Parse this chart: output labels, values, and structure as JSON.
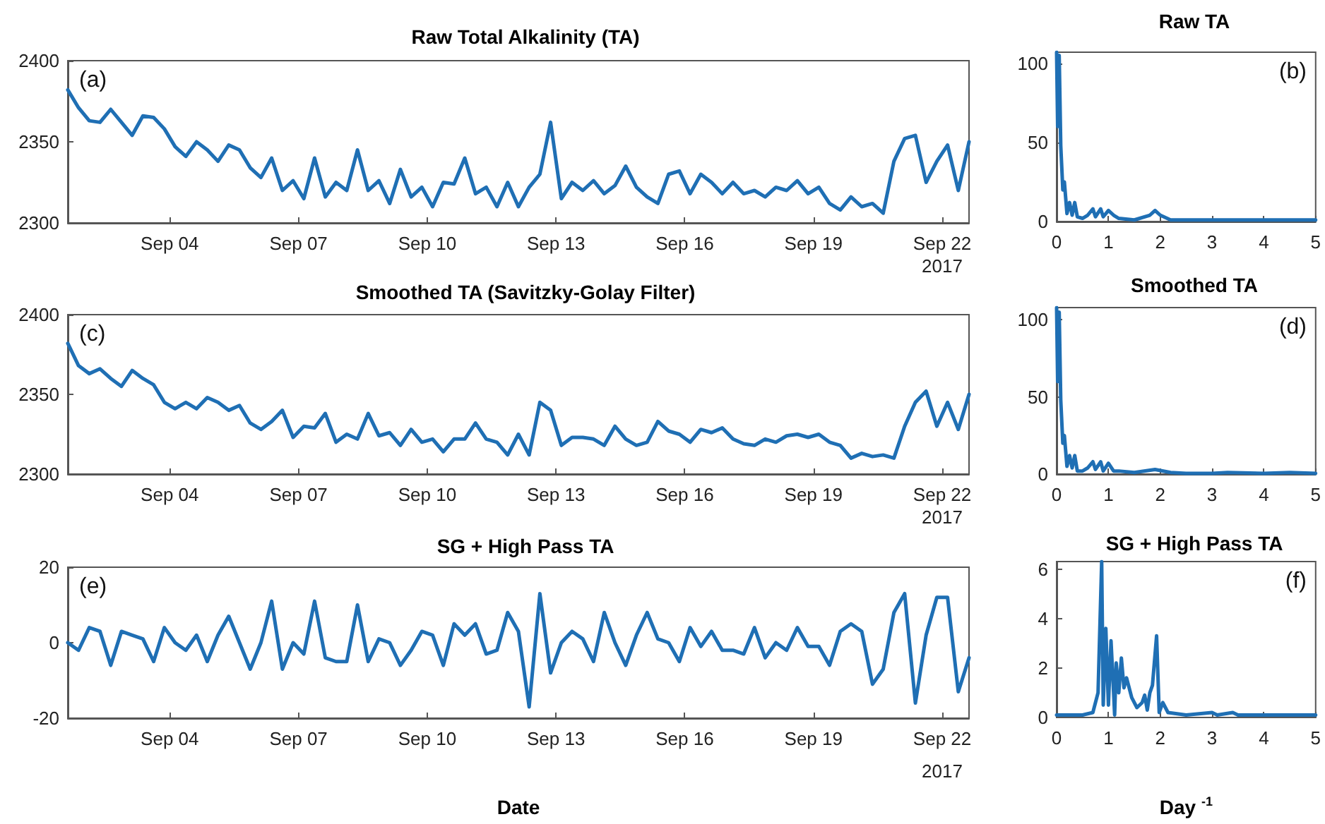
{
  "chart_data": [
    {
      "type": "line",
      "title": "Raw Total Alkalinity (TA)",
      "annotations": [
        "(a)",
        "2017"
      ],
      "x": [
        "2017-09-01T15:00",
        "2017-09-01T21:00",
        "2017-09-02T03:00",
        "2017-09-02T09:00",
        "2017-09-02T15:00",
        "2017-09-02T21:00",
        "2017-09-03T03:00",
        "2017-09-03T09:00",
        "2017-09-03T15:00",
        "2017-09-03T21:00",
        "2017-09-04T03:00",
        "2017-09-04T09:00",
        "2017-09-04T15:00",
        "2017-09-04T21:00",
        "2017-09-05T03:00",
        "2017-09-05T09:00",
        "2017-09-05T15:00",
        "2017-09-05T21:00",
        "2017-09-06T03:00",
        "2017-09-06T09:00",
        "2017-09-06T15:00",
        "2017-09-06T21:00",
        "2017-09-07T03:00",
        "2017-09-07T09:00",
        "2017-09-07T15:00",
        "2017-09-07T21:00",
        "2017-09-08T03:00",
        "2017-09-08T09:00",
        "2017-09-08T15:00",
        "2017-09-08T21:00",
        "2017-09-09T03:00",
        "2017-09-09T09:00",
        "2017-09-09T15:00",
        "2017-09-09T21:00",
        "2017-09-10T03:00",
        "2017-09-10T09:00",
        "2017-09-10T15:00",
        "2017-09-10T21:00",
        "2017-09-11T03:00",
        "2017-09-11T09:00",
        "2017-09-11T15:00",
        "2017-09-11T21:00",
        "2017-09-12T03:00",
        "2017-09-12T09:00",
        "2017-09-12T15:00",
        "2017-09-12T21:00",
        "2017-09-13T03:00",
        "2017-09-13T09:00",
        "2017-09-13T15:00",
        "2017-09-13T21:00",
        "2017-09-14T03:00",
        "2017-09-14T09:00",
        "2017-09-14T15:00",
        "2017-09-14T21:00",
        "2017-09-15T03:00",
        "2017-09-15T09:00",
        "2017-09-15T15:00",
        "2017-09-15T21:00",
        "2017-09-16T03:00",
        "2017-09-16T09:00",
        "2017-09-16T15:00",
        "2017-09-16T21:00",
        "2017-09-17T03:00",
        "2017-09-17T09:00",
        "2017-09-17T15:00",
        "2017-09-17T21:00",
        "2017-09-18T03:00",
        "2017-09-18T09:00",
        "2017-09-18T15:00",
        "2017-09-18T21:00",
        "2017-09-19T03:00",
        "2017-09-19T09:00",
        "2017-09-19T15:00",
        "2017-09-19T21:00",
        "2017-09-20T03:00",
        "2017-09-20T09:00",
        "2017-09-20T15:00",
        "2017-09-20T21:00",
        "2017-09-21T03:00",
        "2017-09-21T09:00",
        "2017-09-21T15:00",
        "2017-09-21T21:00",
        "2017-09-22T03:00",
        "2017-09-22T09:00",
        "2017-09-22T15:00"
      ],
      "series": [
        {
          "color": "#1f6fb4",
          "values": [
            2382,
            2371,
            2363,
            2362,
            2370,
            2362,
            2354,
            2366,
            2365,
            2358,
            2347,
            2341,
            2350,
            2345,
            2338,
            2348,
            2345,
            2334,
            2328,
            2340,
            2320,
            2326,
            2315,
            2340,
            2316,
            2325,
            2320,
            2345,
            2320,
            2326,
            2312,
            2333,
            2316,
            2322,
            2310,
            2325,
            2324,
            2340,
            2318,
            2322,
            2310,
            2325,
            2310,
            2322,
            2330,
            2362,
            2315,
            2325,
            2320,
            2326,
            2318,
            2323,
            2335,
            2322,
            2316,
            2312,
            2330,
            2332,
            2318,
            2330,
            2325,
            2318,
            2325,
            2318,
            2320,
            2316,
            2322,
            2320,
            2326,
            2318,
            2322,
            2312,
            2308,
            2316,
            2310,
            2312,
            2306,
            2338,
            2352,
            2354,
            2325,
            2338,
            2348,
            2320,
            2350
          ]
        }
      ],
      "xlim": [
        "2017-09-01T15:00",
        "2017-09-22T15:00"
      ],
      "xticks": [
        {
          "value": "2017-09-04T00:00",
          "label": "Sep 04"
        },
        {
          "value": "2017-09-07T00:00",
          "label": "Sep 07"
        },
        {
          "value": "2017-09-10T00:00",
          "label": "Sep 10"
        },
        {
          "value": "2017-09-13T00:00",
          "label": "Sep 13"
        },
        {
          "value": "2017-09-16T00:00",
          "label": "Sep 16"
        },
        {
          "value": "2017-09-19T00:00",
          "label": "Sep 19"
        },
        {
          "value": "2017-09-22T00:00",
          "label": "Sep 22"
        }
      ],
      "ylim": [
        2300,
        2400
      ],
      "yticks": [
        2300,
        2350,
        2400
      ],
      "marker": "none",
      "line_style": "solid"
    },
    {
      "type": "line",
      "title": "Raw TA",
      "annotations": [
        "(b)"
      ],
      "x": [
        0,
        0.02,
        0.05,
        0.08,
        0.12,
        0.15,
        0.2,
        0.25,
        0.3,
        0.35,
        0.4,
        0.5,
        0.6,
        0.7,
        0.75,
        0.85,
        0.9,
        1.0,
        1.1,
        1.2,
        1.5,
        1.8,
        1.9,
        2.0,
        2.2,
        2.5,
        3,
        3.5,
        4,
        4.5,
        5
      ],
      "series": [
        {
          "color": "#1f6fb4",
          "values": [
            107,
            60,
            105,
            48,
            20,
            25,
            5,
            12,
            4,
            12,
            3,
            2,
            4,
            8,
            3,
            8,
            3,
            7,
            4,
            2,
            1,
            4,
            7,
            4,
            1,
            1,
            1,
            1,
            1,
            1,
            1
          ]
        }
      ],
      "xlim": [
        0,
        5
      ],
      "xticks": [
        0,
        1,
        2,
        3,
        4,
        5
      ],
      "ylim": [
        0,
        107
      ],
      "yticks": [
        0,
        50,
        100
      ],
      "marker": "none",
      "line_style": "solid"
    },
    {
      "type": "line",
      "title": "Smoothed TA (Savitzky-Golay Filter)",
      "annotations": [
        "(c)",
        "2017"
      ],
      "x": [
        "2017-09-01T15:00",
        "2017-09-01T21:00",
        "2017-09-02T03:00",
        "2017-09-02T09:00",
        "2017-09-02T15:00",
        "2017-09-02T21:00",
        "2017-09-03T03:00",
        "2017-09-03T09:00",
        "2017-09-03T15:00",
        "2017-09-03T21:00",
        "2017-09-04T03:00",
        "2017-09-04T09:00",
        "2017-09-04T15:00",
        "2017-09-04T21:00",
        "2017-09-05T03:00",
        "2017-09-05T09:00",
        "2017-09-05T15:00",
        "2017-09-05T21:00",
        "2017-09-06T03:00",
        "2017-09-06T09:00",
        "2017-09-06T15:00",
        "2017-09-06T21:00",
        "2017-09-07T03:00",
        "2017-09-07T09:00",
        "2017-09-07T15:00",
        "2017-09-07T21:00",
        "2017-09-08T03:00",
        "2017-09-08T09:00",
        "2017-09-08T15:00",
        "2017-09-08T21:00",
        "2017-09-09T03:00",
        "2017-09-09T09:00",
        "2017-09-09T15:00",
        "2017-09-09T21:00",
        "2017-09-10T03:00",
        "2017-09-10T09:00",
        "2017-09-10T15:00",
        "2017-09-10T21:00",
        "2017-09-11T03:00",
        "2017-09-11T09:00",
        "2017-09-11T15:00",
        "2017-09-11T21:00",
        "2017-09-12T03:00",
        "2017-09-12T09:00",
        "2017-09-12T15:00",
        "2017-09-12T21:00",
        "2017-09-13T03:00",
        "2017-09-13T09:00",
        "2017-09-13T15:00",
        "2017-09-13T21:00",
        "2017-09-14T03:00",
        "2017-09-14T09:00",
        "2017-09-14T15:00",
        "2017-09-14T21:00",
        "2017-09-15T03:00",
        "2017-09-15T09:00",
        "2017-09-15T15:00",
        "2017-09-15T21:00",
        "2017-09-16T03:00",
        "2017-09-16T09:00",
        "2017-09-16T15:00",
        "2017-09-16T21:00",
        "2017-09-17T03:00",
        "2017-09-17T09:00",
        "2017-09-17T15:00",
        "2017-09-17T21:00",
        "2017-09-18T03:00",
        "2017-09-18T09:00",
        "2017-09-18T15:00",
        "2017-09-18T21:00",
        "2017-09-19T03:00",
        "2017-09-19T09:00",
        "2017-09-19T15:00",
        "2017-09-19T21:00",
        "2017-09-20T03:00",
        "2017-09-20T09:00",
        "2017-09-20T15:00",
        "2017-09-20T21:00",
        "2017-09-21T03:00",
        "2017-09-21T09:00",
        "2017-09-21T15:00",
        "2017-09-21T21:00",
        "2017-09-22T03:00",
        "2017-09-22T09:00",
        "2017-09-22T15:00"
      ],
      "series": [
        {
          "color": "#1f6fb4",
          "values": [
            2382,
            2368,
            2363,
            2366,
            2360,
            2355,
            2365,
            2360,
            2356,
            2345,
            2341,
            2345,
            2341,
            2348,
            2345,
            2340,
            2343,
            2332,
            2328,
            2333,
            2340,
            2323,
            2330,
            2329,
            2338,
            2320,
            2325,
            2322,
            2338,
            2324,
            2326,
            2318,
            2328,
            2320,
            2322,
            2314,
            2322,
            2322,
            2332,
            2322,
            2320,
            2312,
            2325,
            2312,
            2345,
            2340,
            2318,
            2323,
            2323,
            2322,
            2318,
            2330,
            2322,
            2318,
            2320,
            2333,
            2327,
            2325,
            2320,
            2328,
            2326,
            2329,
            2322,
            2319,
            2318,
            2322,
            2320,
            2324,
            2325,
            2323,
            2325,
            2320,
            2318,
            2310,
            2313,
            2311,
            2312,
            2310,
            2330,
            2345,
            2352,
            2330,
            2345,
            2328,
            2350
          ]
        }
      ],
      "xlim": [
        "2017-09-01T15:00",
        "2017-09-22T15:00"
      ],
      "xticks": [
        {
          "value": "2017-09-04T00:00",
          "label": "Sep 04"
        },
        {
          "value": "2017-09-07T00:00",
          "label": "Sep 07"
        },
        {
          "value": "2017-09-10T00:00",
          "label": "Sep 10"
        },
        {
          "value": "2017-09-13T00:00",
          "label": "Sep 13"
        },
        {
          "value": "2017-09-16T00:00",
          "label": "Sep 16"
        },
        {
          "value": "2017-09-19T00:00",
          "label": "Sep 19"
        },
        {
          "value": "2017-09-22T00:00",
          "label": "Sep 22"
        }
      ],
      "ylim": [
        2300,
        2400
      ],
      "yticks": [
        2300,
        2350,
        2400
      ],
      "marker": "none",
      "line_style": "solid"
    },
    {
      "type": "line",
      "title": "Smoothed TA",
      "annotations": [
        "(d)"
      ],
      "x": [
        0,
        0.02,
        0.05,
        0.08,
        0.12,
        0.15,
        0.2,
        0.25,
        0.3,
        0.35,
        0.4,
        0.5,
        0.6,
        0.7,
        0.75,
        0.85,
        0.9,
        1.0,
        1.1,
        1.2,
        1.5,
        1.9,
        2.2,
        2.5,
        3,
        3.3,
        4,
        4.5,
        5
      ],
      "series": [
        {
          "color": "#1f6fb4",
          "values": [
            108,
            60,
            105,
            48,
            20,
            25,
            5,
            12,
            4,
            12,
            2,
            2,
            4,
            8,
            3,
            8,
            2,
            7,
            2,
            2,
            1,
            3,
            1,
            0.5,
            0.5,
            1,
            0.5,
            1,
            0.5
          ]
        }
      ],
      "xlim": [
        0,
        5
      ],
      "xticks": [
        0,
        1,
        2,
        3,
        4,
        5
      ],
      "ylim": [
        0,
        108
      ],
      "yticks": [
        0,
        50,
        100
      ],
      "marker": "none",
      "line_style": "solid"
    },
    {
      "type": "line",
      "title": "SG + High Pass TA",
      "xlabel": "Date",
      "annotations": [
        "(e)",
        "2017"
      ],
      "x": [
        "2017-09-01T15:00",
        "2017-09-01T21:00",
        "2017-09-02T03:00",
        "2017-09-02T09:00",
        "2017-09-02T15:00",
        "2017-09-02T21:00",
        "2017-09-03T03:00",
        "2017-09-03T09:00",
        "2017-09-03T15:00",
        "2017-09-03T21:00",
        "2017-09-04T03:00",
        "2017-09-04T09:00",
        "2017-09-04T15:00",
        "2017-09-04T21:00",
        "2017-09-05T03:00",
        "2017-09-05T09:00",
        "2017-09-05T15:00",
        "2017-09-05T21:00",
        "2017-09-06T03:00",
        "2017-09-06T09:00",
        "2017-09-06T15:00",
        "2017-09-06T21:00",
        "2017-09-07T03:00",
        "2017-09-07T09:00",
        "2017-09-07T15:00",
        "2017-09-07T21:00",
        "2017-09-08T03:00",
        "2017-09-08T09:00",
        "2017-09-08T15:00",
        "2017-09-08T21:00",
        "2017-09-09T03:00",
        "2017-09-09T09:00",
        "2017-09-09T15:00",
        "2017-09-09T21:00",
        "2017-09-10T03:00",
        "2017-09-10T09:00",
        "2017-09-10T15:00",
        "2017-09-10T21:00",
        "2017-09-11T03:00",
        "2017-09-11T09:00",
        "2017-09-11T15:00",
        "2017-09-11T21:00",
        "2017-09-12T03:00",
        "2017-09-12T09:00",
        "2017-09-12T15:00",
        "2017-09-12T21:00",
        "2017-09-13T03:00",
        "2017-09-13T09:00",
        "2017-09-13T15:00",
        "2017-09-13T21:00",
        "2017-09-14T03:00",
        "2017-09-14T09:00",
        "2017-09-14T15:00",
        "2017-09-14T21:00",
        "2017-09-15T03:00",
        "2017-09-15T09:00",
        "2017-09-15T15:00",
        "2017-09-15T21:00",
        "2017-09-16T03:00",
        "2017-09-16T09:00",
        "2017-09-16T15:00",
        "2017-09-16T21:00",
        "2017-09-17T03:00",
        "2017-09-17T09:00",
        "2017-09-17T15:00",
        "2017-09-17T21:00",
        "2017-09-18T03:00",
        "2017-09-18T09:00",
        "2017-09-18T15:00",
        "2017-09-18T21:00",
        "2017-09-19T03:00",
        "2017-09-19T09:00",
        "2017-09-19T15:00",
        "2017-09-19T21:00",
        "2017-09-20T03:00",
        "2017-09-20T09:00",
        "2017-09-20T15:00",
        "2017-09-20T21:00",
        "2017-09-21T03:00",
        "2017-09-21T09:00",
        "2017-09-21T15:00",
        "2017-09-21T21:00",
        "2017-09-22T03:00",
        "2017-09-22T09:00",
        "2017-09-22T15:00"
      ],
      "series": [
        {
          "color": "#1f6fb4",
          "values": [
            0,
            -2,
            4,
            3,
            -6,
            3,
            2,
            1,
            -5,
            4,
            0,
            -2,
            2,
            -5,
            2,
            7,
            0,
            -7,
            0,
            11,
            -7,
            0,
            -3,
            11,
            -4,
            -5,
            -5,
            10,
            -5,
            1,
            0,
            -6,
            -2,
            3,
            2,
            -6,
            5,
            2,
            5,
            -3,
            -2,
            8,
            3,
            -17,
            13,
            -8,
            0,
            3,
            1,
            -5,
            8,
            0,
            -6,
            2,
            8,
            1,
            0,
            -5,
            4,
            -1,
            3,
            -2,
            -2,
            -3,
            4,
            -4,
            0,
            -2,
            4,
            -1,
            -1,
            -6,
            3,
            5,
            3,
            -11,
            -7,
            8,
            13,
            -16,
            2,
            12,
            12,
            -13,
            -4
          ]
        }
      ],
      "xlim": [
        "2017-09-01T15:00",
        "2017-09-22T15:00"
      ],
      "xticks": [
        {
          "value": "2017-09-04T00:00",
          "label": "Sep 04"
        },
        {
          "value": "2017-09-07T00:00",
          "label": "Sep 07"
        },
        {
          "value": "2017-09-10T00:00",
          "label": "Sep 10"
        },
        {
          "value": "2017-09-13T00:00",
          "label": "Sep 13"
        },
        {
          "value": "2017-09-16T00:00",
          "label": "Sep 16"
        },
        {
          "value": "2017-09-19T00:00",
          "label": "Sep 19"
        },
        {
          "value": "2017-09-22T00:00",
          "label": "Sep 22"
        }
      ],
      "ylim": [
        -20,
        20
      ],
      "yticks": [
        -20,
        0,
        20
      ],
      "marker": "none",
      "line_style": "solid"
    },
    {
      "type": "line",
      "title": "SG + High Pass TA",
      "xlabel": "Day $^{-1}$",
      "annotations": [
        "(f)"
      ],
      "x": [
        0,
        0.5,
        0.7,
        0.8,
        0.87,
        0.9,
        0.95,
        1.0,
        1.05,
        1.1,
        1.12,
        1.15,
        1.2,
        1.25,
        1.3,
        1.35,
        1.45,
        1.55,
        1.65,
        1.7,
        1.75,
        1.8,
        1.85,
        1.93,
        1.98,
        2.05,
        2.15,
        2.5,
        3,
        3.1,
        3.4,
        3.5,
        5
      ],
      "series": [
        {
          "color": "#1f6fb4",
          "values": [
            0.1,
            0.1,
            0.2,
            1,
            6.3,
            0.5,
            3.6,
            0.5,
            3.1,
            1,
            0.1,
            2.2,
            1,
            2.4,
            1.2,
            1.6,
            0.8,
            0.4,
            0.6,
            0.9,
            0.3,
            1,
            1.3,
            3.3,
            0.2,
            0.6,
            0.2,
            0.1,
            0.2,
            0.1,
            0.2,
            0.1,
            0.1
          ]
        }
      ],
      "xlim": [
        0,
        5
      ],
      "xticks": [
        0,
        1,
        2,
        3,
        4,
        5
      ],
      "ylim": [
        0,
        6.3
      ],
      "yticks": [
        0,
        2,
        4,
        6
      ],
      "marker": "none",
      "line_style": "solid"
    }
  ]
}
